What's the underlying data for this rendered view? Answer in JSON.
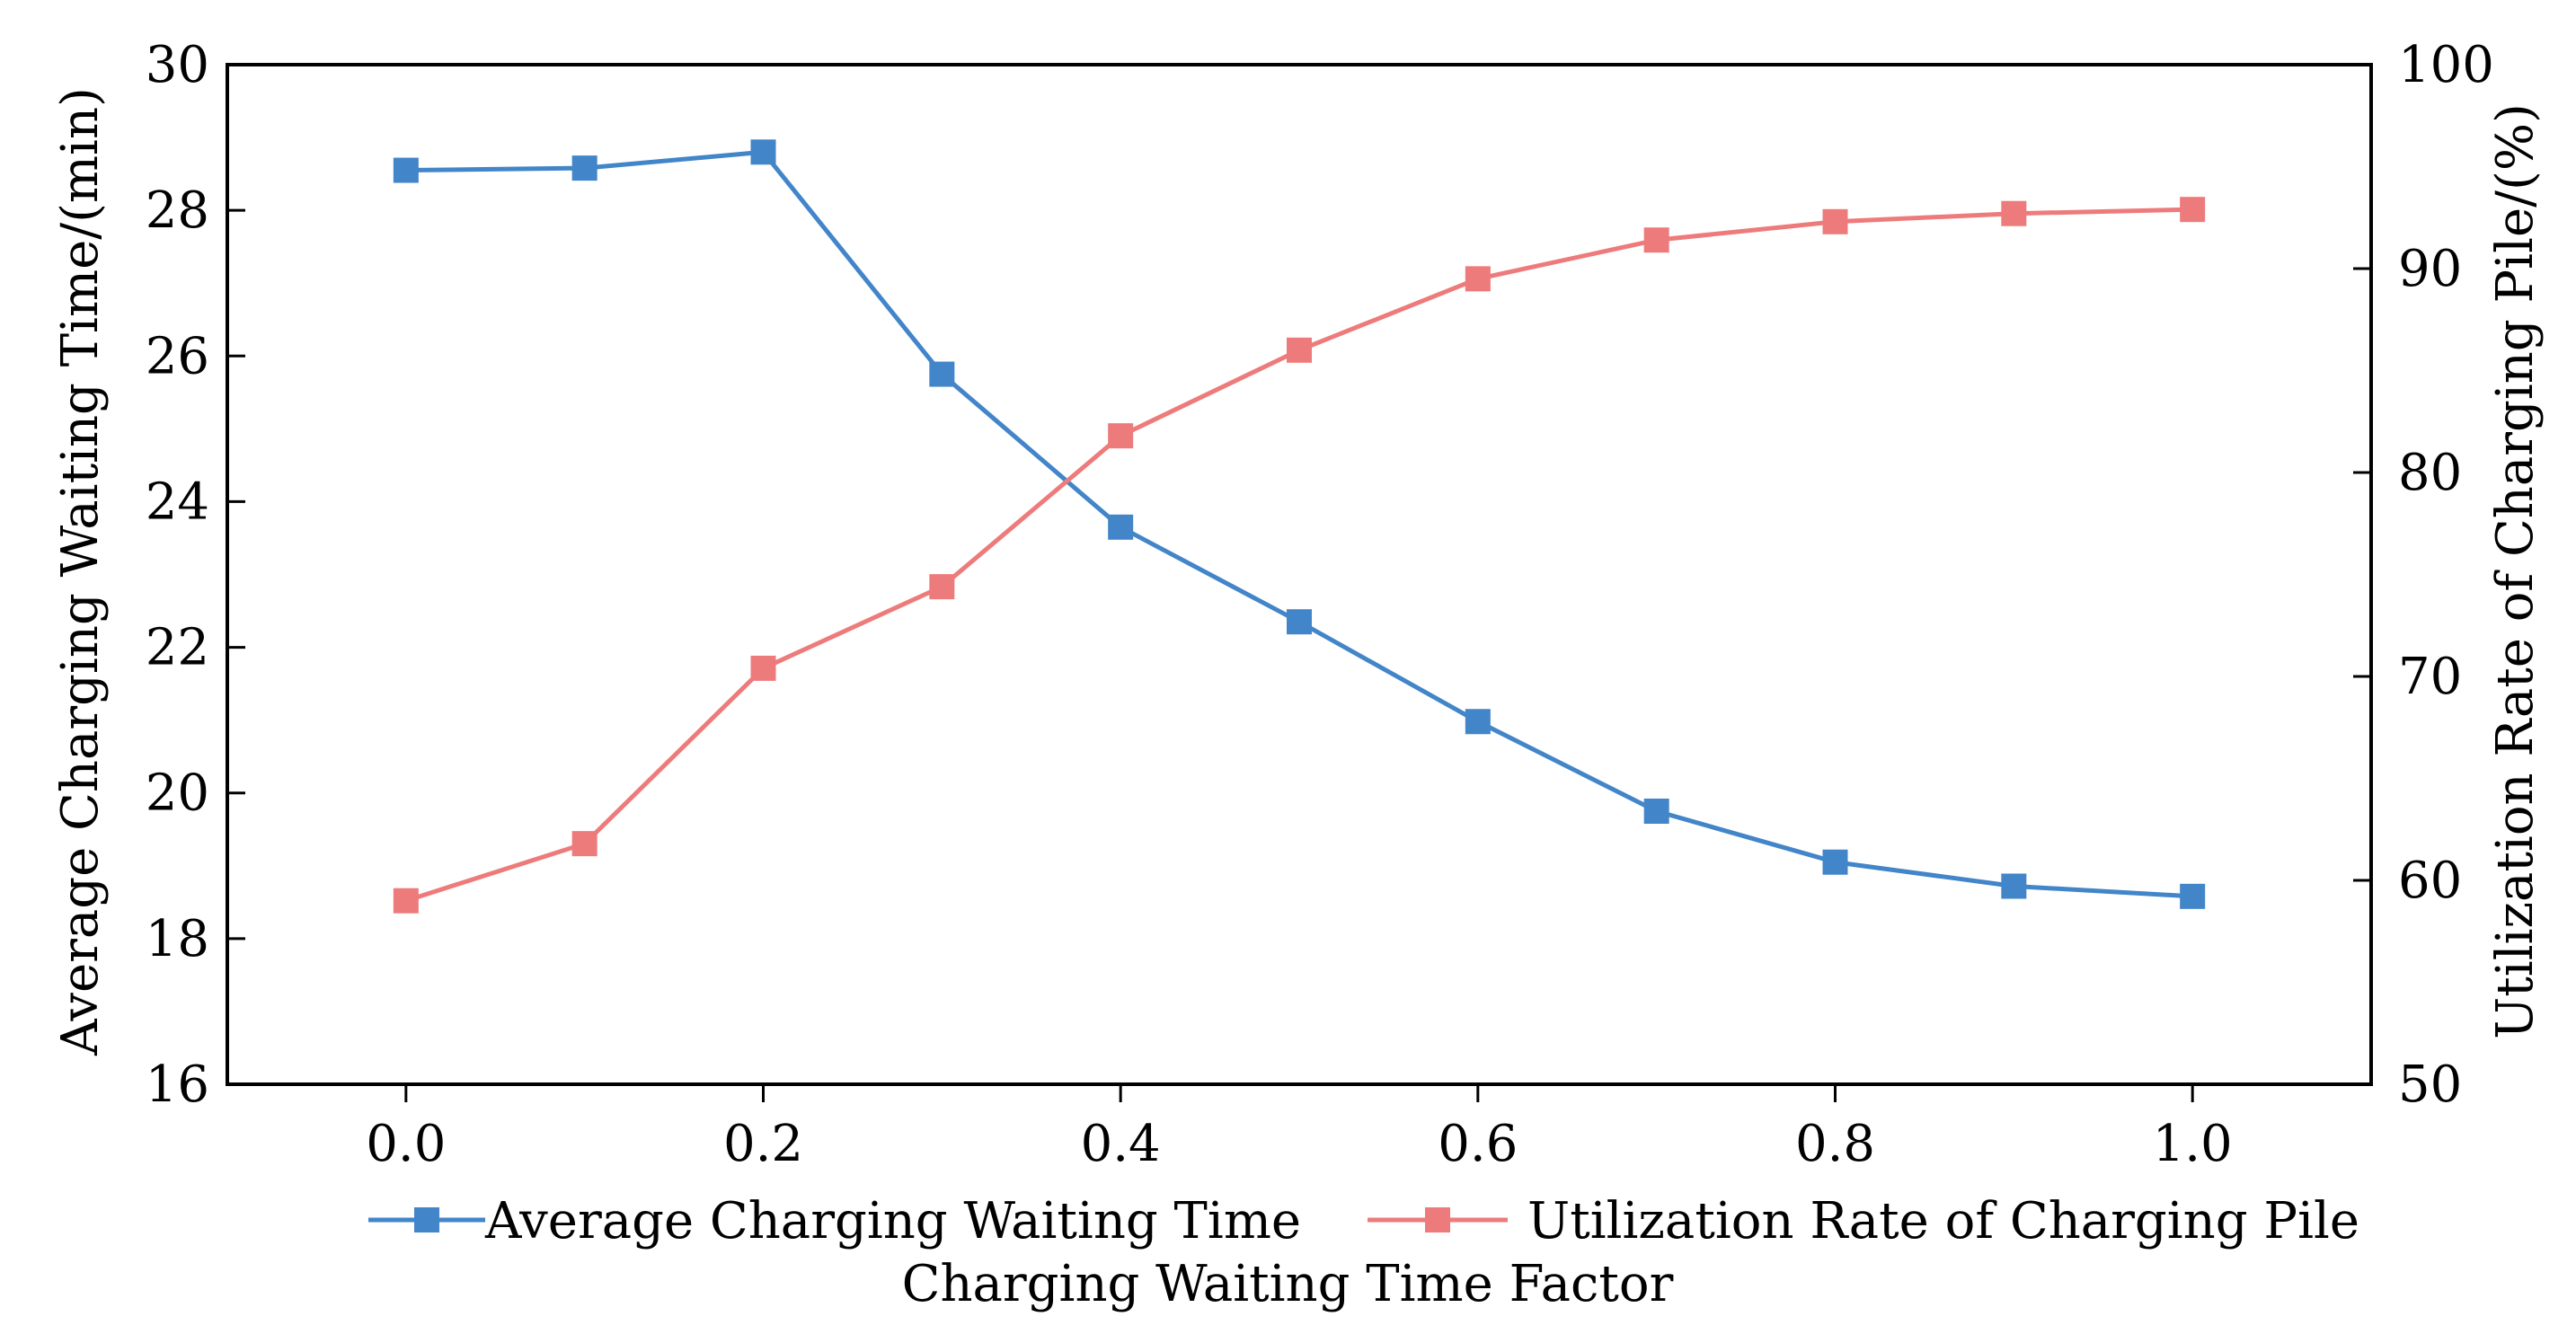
{
  "chart_data": {
    "type": "line",
    "title": "",
    "xlabel": "Charging Waiting Time Factor",
    "ylabel": "Average Charging Waiting Time/(min)",
    "y2label": "Utilization Rate of Charging Pile/(%)",
    "x": [
      0.0,
      0.1,
      0.2,
      0.3,
      0.4,
      0.5,
      0.6,
      0.7,
      0.8,
      0.9,
      1.0
    ],
    "xlim": [
      -0.1,
      1.1
    ],
    "xticks": [
      0.0,
      0.2,
      0.4,
      0.6,
      0.8,
      1.0
    ],
    "xtick_labels": [
      "0.0",
      "0.2",
      "0.4",
      "0.6",
      "0.8",
      "1.0"
    ],
    "ylim": [
      16,
      30
    ],
    "yticks": [
      16,
      18,
      20,
      22,
      24,
      26,
      28,
      30
    ],
    "ytick_labels": [
      "16",
      "18",
      "20",
      "22",
      "24",
      "26",
      "28",
      "30"
    ],
    "y2lim": [
      50,
      100
    ],
    "y2ticks": [
      50,
      60,
      70,
      80,
      90,
      100
    ],
    "y2tick_labels": [
      "50",
      "60",
      "70",
      "80",
      "90",
      "100"
    ],
    "grid": false,
    "legend_position": "bottom-center",
    "series": [
      {
        "name": "Average Charging Waiting Time",
        "axis": "left",
        "color": "#4285c9",
        "marker": "square",
        "values": [
          28.55,
          28.58,
          28.8,
          25.75,
          23.65,
          22.35,
          20.98,
          19.75,
          19.05,
          18.72,
          18.58
        ]
      },
      {
        "name": "Utilization Rate of Charging Pile",
        "axis": "right",
        "color": "#ee7b7b",
        "marker": "square",
        "values": [
          59.0,
          61.8,
          70.4,
          74.4,
          81.8,
          86.0,
          89.5,
          91.4,
          92.3,
          92.7,
          92.9
        ]
      }
    ]
  }
}
